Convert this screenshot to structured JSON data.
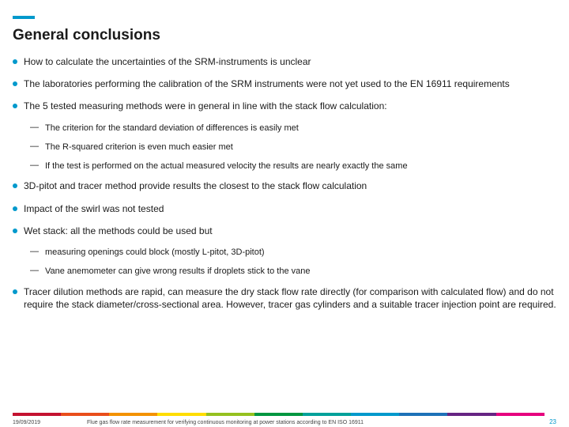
{
  "title": "General conclusions",
  "bullets": [
    {
      "text": "How to calculate the uncertainties of the SRM-instruments is unclear",
      "subs": []
    },
    {
      "text": "The laboratories performing the calibration of the SRM instruments were not yet used to the EN 16911 requirements",
      "subs": []
    },
    {
      "text": "The 5 tested measuring methods were in general in line with the stack flow calculation:",
      "subs": [
        "The criterion for the standard deviation of differences is easily met",
        "The R-squared criterion is even much easier met",
        "If the test is performed on the actual measured velocity the results are nearly exactly the same"
      ]
    },
    {
      "text": "3D-pitot and tracer method provide results the closest to the stack flow calculation",
      "subs": []
    },
    {
      "text": "Impact of the swirl was not tested",
      "subs": []
    },
    {
      "text": "Wet stack: all the methods could be used but",
      "subs": [
        "measuring openings could block (mostly L-pitot, 3D-pitot)",
        "Vane anemometer can give wrong results if droplets stick to the vane"
      ]
    },
    {
      "text": "Tracer dilution methods are rapid, can measure the dry stack flow rate directly (for comparison with calculated flow) and do not require the stack diameter/cross-sectional area. However, tracer gas cylinders and a suitable tracer injection point are required.",
      "subs": []
    }
  ],
  "footer": {
    "date": "19/09/2019",
    "caption": "Flue gas flow rate measurement for verifying continuous monitoring at power stations according to EN ISO 16911",
    "page": "23"
  },
  "stripe_colors": [
    {
      "c": "#c41230",
      "w": 8
    },
    {
      "c": "#e94e1b",
      "w": 8
    },
    {
      "c": "#f39200",
      "w": 8
    },
    {
      "c": "#ffdd00",
      "w": 8
    },
    {
      "c": "#95c11f",
      "w": 8
    },
    {
      "c": "#009640",
      "w": 8
    },
    {
      "c": "#00a19a",
      "w": 8
    },
    {
      "c": "#0099cc",
      "w": 8
    },
    {
      "c": "#1d71b8",
      "w": 8
    },
    {
      "c": "#662483",
      "w": 8
    },
    {
      "c": "#e6007e",
      "w": 8
    },
    {
      "c": "#ffffff",
      "w": 2
    }
  ],
  "accent": "#0099cc"
}
